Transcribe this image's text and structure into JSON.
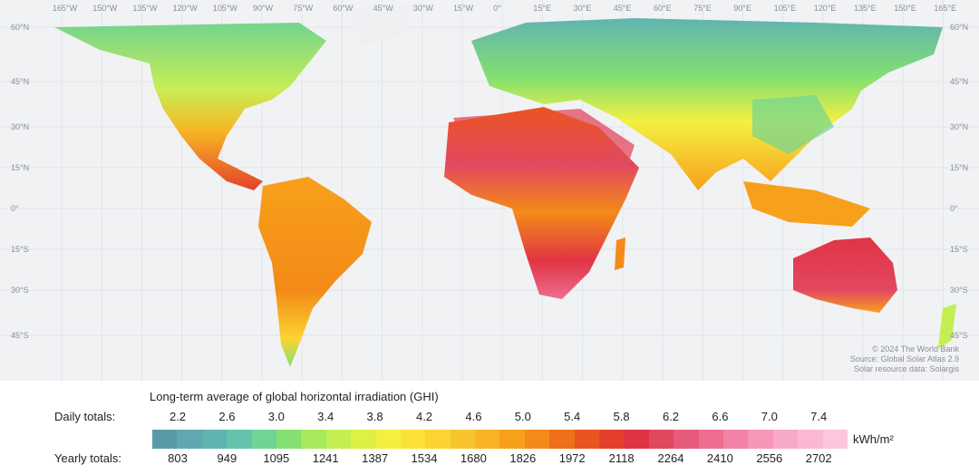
{
  "map": {
    "longitude_labels": [
      "165°W",
      "150°W",
      "135°W",
      "120°W",
      "105°W",
      "90°W",
      "75°W",
      "60°W",
      "45°W",
      "30°W",
      "15°W",
      "0°",
      "15°E",
      "30°E",
      "45°E",
      "60°E",
      "75°E",
      "90°E",
      "105°E",
      "120°E",
      "135°E",
      "150°E",
      "165°E"
    ],
    "latitude_labels": [
      "60°N",
      "45°N",
      "30°N",
      "15°N",
      "0°",
      "15°S",
      "30°S",
      "45°S"
    ],
    "credit": [
      "© 2024 The World Bank",
      "Source: Global Solar Atlas 2.9",
      "Solar resource data: Solargis"
    ]
  },
  "legend": {
    "title": "Long-term average of global horizontal irradiation (GHI)",
    "daily_label": "Daily totals:",
    "daily_values": [
      "2.2",
      "2.6",
      "3.0",
      "3.4",
      "3.8",
      "4.2",
      "4.6",
      "5.0",
      "5.4",
      "5.8",
      "6.2",
      "6.6",
      "7.0",
      "7.4"
    ],
    "yearly_label": "Yearly totals:",
    "yearly_values": [
      "803",
      "949",
      "1095",
      "1241",
      "1387",
      "1534",
      "1680",
      "1826",
      "1972",
      "2118",
      "2264",
      "2410",
      "2556",
      "2702"
    ],
    "unit": "kWh/m²",
    "colors": [
      "#5a9aa8",
      "#5fa8b2",
      "#60b4b0",
      "#66c2aa",
      "#70d496",
      "#84e070",
      "#a8ea5e",
      "#c4ee52",
      "#dcf046",
      "#f4f040",
      "#fce238",
      "#fcd432",
      "#f8c42e",
      "#f8b424",
      "#f8a01c",
      "#f48a18",
      "#ee7018",
      "#ea5420",
      "#e4402c",
      "#e03444",
      "#e24860",
      "#e85a7a",
      "#ee6e90",
      "#f282a8",
      "#f696b8",
      "#f8a8c8",
      "#fab8d4",
      "#fcc6dc"
    ]
  }
}
